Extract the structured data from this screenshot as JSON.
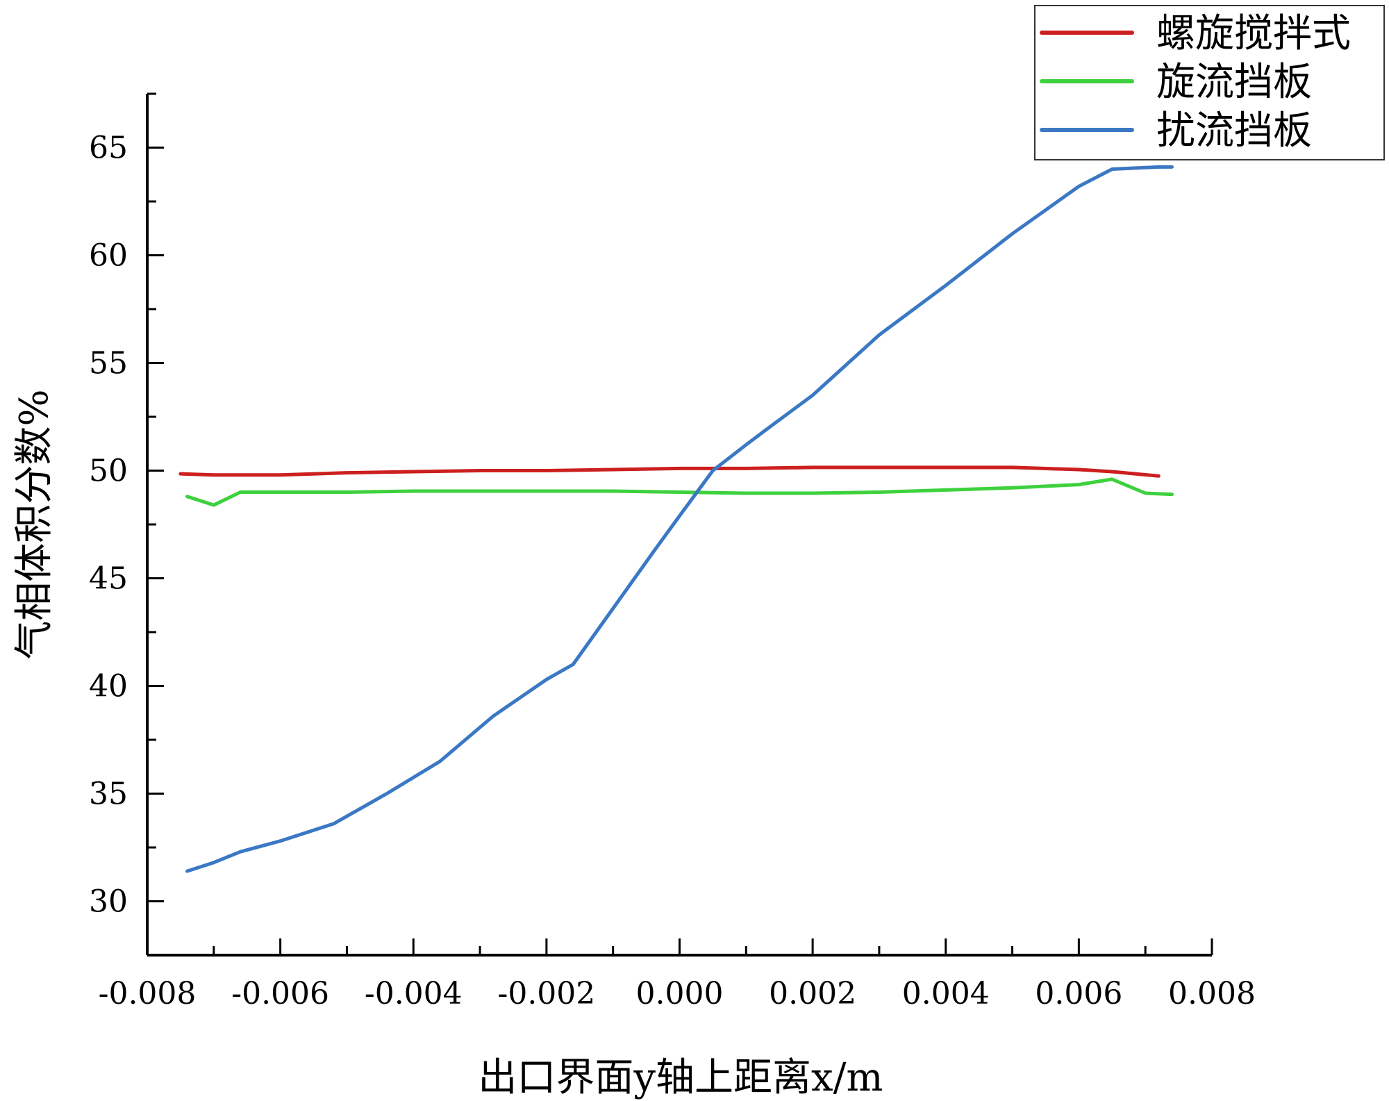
{
  "chart_data": {
    "type": "line",
    "xlabel": "出口界面y轴上距离x/m",
    "ylabel": "气相体积分数%",
    "xlim": [
      -0.008,
      0.008
    ],
    "ylim": [
      27.5,
      67.5
    ],
    "x_ticks": [
      "-0.008",
      "-0.006",
      "-0.004",
      "-0.002",
      "0.000",
      "0.002",
      "0.004",
      "0.006",
      "0.008"
    ],
    "y_ticks": [
      "30",
      "35",
      "40",
      "45",
      "50",
      "55",
      "60",
      "65"
    ],
    "grid": false,
    "legend_position": "top-right",
    "series": [
      {
        "name": "螺旋搅拌式",
        "color": "#cc1f1f",
        "x": [
          -0.0075,
          -0.007,
          -0.006,
          -0.005,
          -0.004,
          -0.003,
          -0.002,
          -0.001,
          0.0,
          0.001,
          0.002,
          0.003,
          0.004,
          0.005,
          0.006,
          0.0065,
          0.0072
        ],
        "y": [
          49.85,
          49.8,
          49.8,
          49.9,
          49.95,
          50.0,
          50.0,
          50.05,
          50.1,
          50.1,
          50.15,
          50.15,
          50.15,
          50.15,
          50.05,
          49.95,
          49.75
        ]
      },
      {
        "name": "旋流挡板",
        "color": "#3ed13e",
        "x": [
          -0.0074,
          -0.007,
          -0.0066,
          -0.006,
          -0.005,
          -0.004,
          -0.003,
          -0.002,
          -0.001,
          0.0,
          0.001,
          0.002,
          0.003,
          0.004,
          0.005,
          0.006,
          0.0065,
          0.007,
          0.0074
        ],
        "y": [
          48.8,
          48.4,
          49.0,
          49.0,
          49.0,
          49.05,
          49.05,
          49.05,
          49.05,
          49.0,
          48.95,
          48.95,
          49.0,
          49.1,
          49.2,
          49.35,
          49.6,
          48.95,
          48.9
        ]
      },
      {
        "name": "扰流挡板",
        "color": "#3b78c4",
        "x": [
          -0.0074,
          -0.007,
          -0.0066,
          -0.006,
          -0.0052,
          -0.0044,
          -0.0036,
          -0.0028,
          -0.002,
          -0.0016,
          -0.001,
          -0.0004,
          0.0,
          0.0005,
          0.001,
          0.0013,
          0.002,
          0.003,
          0.004,
          0.005,
          0.006,
          0.0065,
          0.0072,
          0.0074
        ],
        "y": [
          31.4,
          31.8,
          32.3,
          32.8,
          33.6,
          35.0,
          36.5,
          38.6,
          40.3,
          41.0,
          43.6,
          46.2,
          47.9,
          50.0,
          51.2,
          51.9,
          53.5,
          56.3,
          58.6,
          61.0,
          63.2,
          64.0,
          64.1,
          64.1
        ]
      }
    ]
  }
}
